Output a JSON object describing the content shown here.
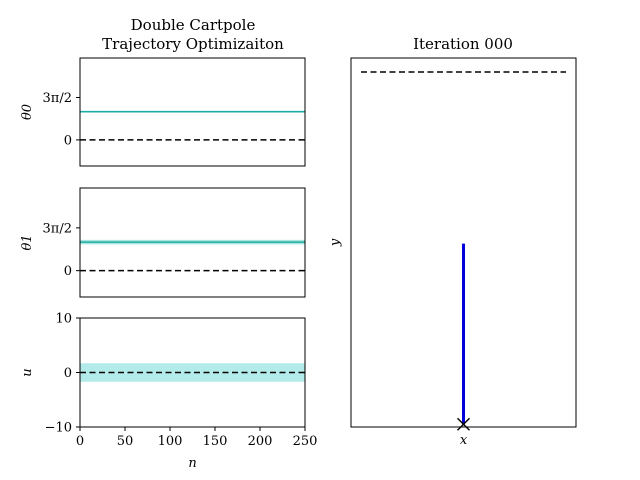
{
  "chart_data": [
    {
      "type": "line",
      "title_line1": "Double Cartpole",
      "title_line2": "Trajectory Optimizaiton",
      "ylabel": "θ0",
      "yticks": [
        {
          "value": 0,
          "label": "0"
        },
        {
          "value": 4.712,
          "label": "3π/2"
        }
      ],
      "ylim": [
        -2.9,
        9.1
      ],
      "xlim": [
        0,
        250
      ],
      "series": [
        {
          "values": [
            3.14,
            3.14
          ],
          "x": [
            0,
            250
          ],
          "color": "#1aafa5",
          "style": "solid",
          "band": 0.06
        },
        {
          "values": [
            0,
            0
          ],
          "x": [
            0,
            250
          ],
          "color": "#000000",
          "style": "dashed"
        }
      ]
    },
    {
      "type": "line",
      "ylabel": "θ1",
      "yticks": [
        {
          "value": 0,
          "label": "0"
        },
        {
          "value": 4.712,
          "label": "3π/2"
        }
      ],
      "ylim": [
        -2.9,
        9.1
      ],
      "xlim": [
        0,
        250
      ],
      "series": [
        {
          "values": [
            3.14,
            3.14
          ],
          "x": [
            0,
            250
          ],
          "color": "#1aafa5",
          "style": "solid",
          "band": 0.25
        },
        {
          "values": [
            0,
            0
          ],
          "x": [
            0,
            250
          ],
          "color": "#000000",
          "style": "dashed"
        }
      ]
    },
    {
      "type": "area",
      "ylabel": "u",
      "xlabel": "n",
      "yticks": [
        {
          "value": -10,
          "label": "−10"
        },
        {
          "value": 0,
          "label": "0"
        },
        {
          "value": 10,
          "label": "10"
        }
      ],
      "xticks": [
        0,
        50,
        100,
        150,
        200,
        250
      ],
      "ylim": [
        -10,
        10
      ],
      "xlim": [
        0,
        250
      ],
      "series": [
        {
          "values": [
            0,
            0
          ],
          "x": [
            0,
            250
          ],
          "color": "#000000",
          "style": "dashed",
          "band": 1.7,
          "band_color": "#b2ebe9"
        }
      ]
    },
    {
      "type": "scatter",
      "title": "Iteration 000",
      "xlabel": "x",
      "ylabel": "y",
      "xlim": [
        -2.2,
        2.2
      ],
      "ylim": [
        -0.35,
        6.25
      ],
      "target_height": 6.0,
      "cart": {
        "x": 0,
        "y": -0.3,
        "marker": "x"
      },
      "pole": {
        "x": [
          0,
          0
        ],
        "y": [
          -0.3,
          2.93
        ],
        "color": "#0000dd"
      }
    }
  ]
}
